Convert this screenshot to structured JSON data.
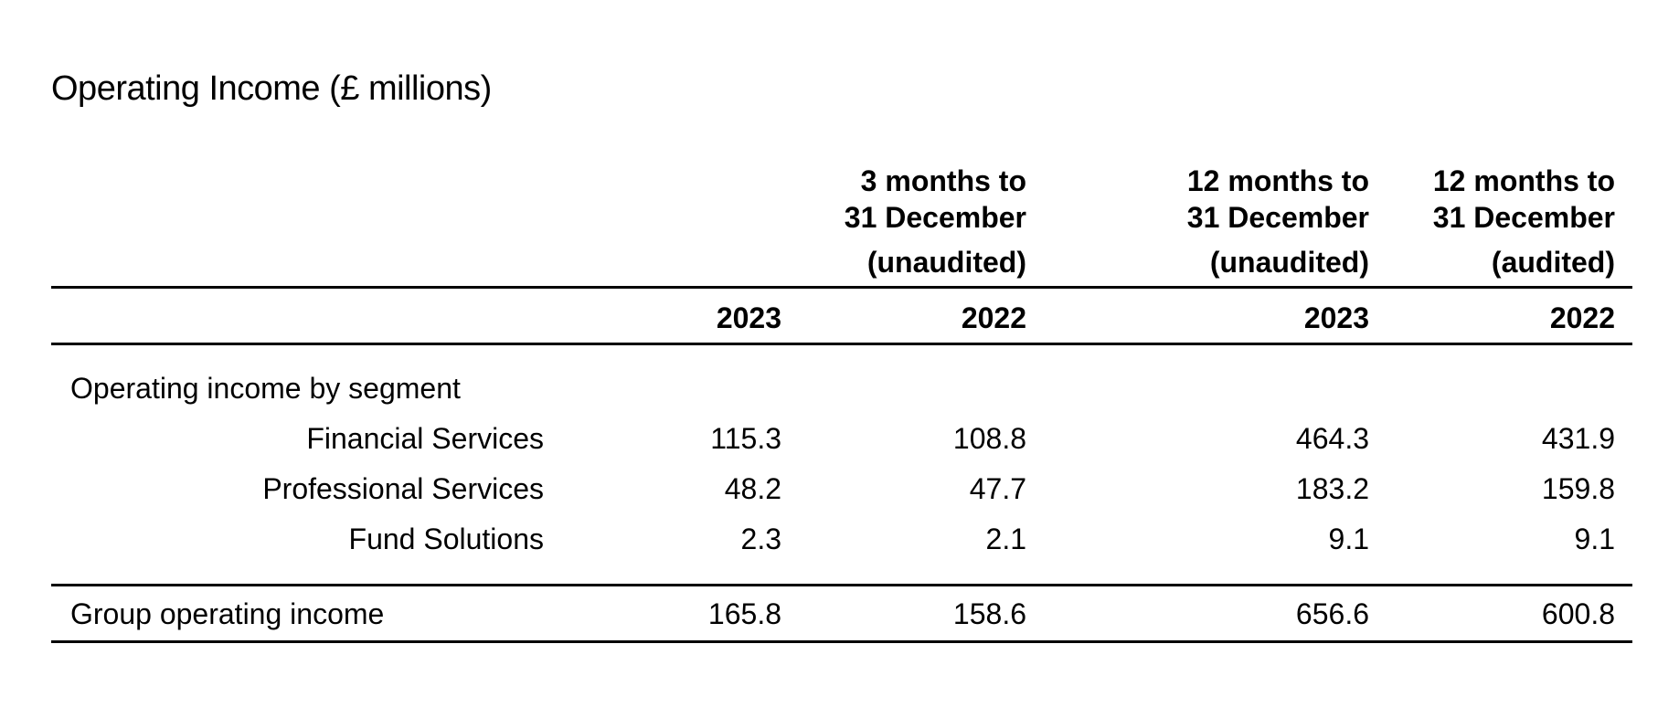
{
  "title": "Operating Income (£ millions)",
  "column_headers": [
    {
      "line1": "3 months to",
      "line2": "31 December",
      "line3": "(unaudited)"
    },
    {
      "line1": "12 months to",
      "line2": "31 December",
      "line3": "(unaudited)"
    },
    {
      "line1": "12 months to",
      "line2": "31 December",
      "line3": "(audited)"
    }
  ],
  "years": [
    "2023",
    "2022",
    "2023",
    "2022"
  ],
  "segment_heading": "Operating income by segment",
  "rows": [
    {
      "label": "Financial Services",
      "values": [
        "115.3",
        "108.8",
        "464.3",
        "431.9"
      ]
    },
    {
      "label": "Professional Services",
      "values": [
        "48.2",
        "47.7",
        "183.2",
        "159.8"
      ]
    },
    {
      "label": "Fund Solutions",
      "values": [
        "2.3",
        "2.1",
        "9.1",
        "9.1"
      ]
    }
  ],
  "total": {
    "label": "Group operating income",
    "values": [
      "165.8",
      "158.6",
      "656.6",
      "600.8"
    ]
  }
}
